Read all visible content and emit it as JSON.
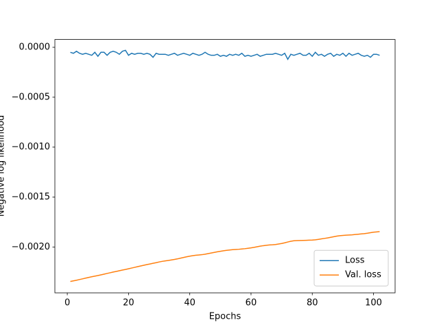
{
  "chart_data": {
    "type": "line",
    "xlabel": "Epochs",
    "ylabel": "Negative log likelihood",
    "x": [
      1,
      2,
      3,
      4,
      5,
      6,
      7,
      8,
      9,
      10,
      11,
      12,
      13,
      14,
      15,
      16,
      17,
      18,
      19,
      20,
      21,
      22,
      23,
      24,
      25,
      26,
      27,
      28,
      29,
      30,
      31,
      32,
      33,
      34,
      35,
      36,
      37,
      38,
      39,
      40,
      41,
      42,
      43,
      44,
      45,
      46,
      47,
      48,
      49,
      50,
      51,
      52,
      53,
      54,
      55,
      56,
      57,
      58,
      59,
      60,
      61,
      62,
      63,
      64,
      65,
      66,
      67,
      68,
      69,
      70,
      71,
      72,
      73,
      74,
      75,
      76,
      77,
      78,
      79,
      80,
      81,
      82,
      83,
      84,
      85,
      86,
      87,
      88,
      89,
      90,
      91,
      92,
      93,
      94,
      95,
      96,
      97,
      98,
      99,
      100,
      101,
      102
    ],
    "series": [
      {
        "name": "Loss",
        "color": "#1f77b4",
        "values": [
          -5e-05,
          -6e-05,
          -4e-05,
          -6e-05,
          -7e-05,
          -6e-05,
          -7e-05,
          -8e-05,
          -5e-05,
          -9e-05,
          -5e-05,
          -5e-05,
          -8e-05,
          -5e-05,
          -4e-05,
          -5e-05,
          -7e-05,
          -4e-05,
          -3e-05,
          -8e-05,
          -6e-05,
          -7e-05,
          -6e-05,
          -6e-05,
          -7e-05,
          -6e-05,
          -7e-05,
          -0.0001,
          -6e-05,
          -7e-05,
          -7e-05,
          -7e-05,
          -8e-05,
          -7e-05,
          -6e-05,
          -8e-05,
          -7e-05,
          -6e-05,
          -7e-05,
          -8e-05,
          -6e-05,
          -7e-05,
          -8e-05,
          -7e-05,
          -5e-05,
          -7e-05,
          -8e-05,
          -8e-05,
          -7e-05,
          -9e-05,
          -8e-05,
          -9e-05,
          -7e-05,
          -8e-05,
          -7e-05,
          -8e-05,
          -6e-05,
          -9e-05,
          -8e-05,
          -9e-05,
          -8e-05,
          -7e-05,
          -9e-05,
          -8e-05,
          -7e-05,
          -7e-05,
          -7e-05,
          -6e-05,
          -7e-05,
          -8e-05,
          -6e-05,
          -0.00012,
          -7e-05,
          -8e-05,
          -7e-05,
          -6e-05,
          -8e-05,
          -8e-05,
          -6e-05,
          -9e-05,
          -5e-05,
          -8e-05,
          -7e-05,
          -9e-05,
          -7e-05,
          -6e-05,
          -9e-05,
          -7e-05,
          -8e-05,
          -6e-05,
          -9e-05,
          -6e-05,
          -8e-05,
          -7e-05,
          -6e-05,
          -8e-05,
          -9e-05,
          -8e-05,
          -0.0001,
          -7e-05,
          -7e-05,
          -8e-05
        ]
      },
      {
        "name": "Val. loss",
        "color": "#ff7f0e",
        "values": [
          -0.002345,
          -0.002339,
          -0.002333,
          -0.002326,
          -0.002319,
          -0.002312,
          -0.002305,
          -0.002298,
          -0.002292,
          -0.002286,
          -0.002279,
          -0.002272,
          -0.002265,
          -0.002258,
          -0.002251,
          -0.002245,
          -0.002238,
          -0.002231,
          -0.002225,
          -0.002218,
          -0.002211,
          -0.002204,
          -0.002197,
          -0.00219,
          -0.002183,
          -0.002176,
          -0.00217,
          -0.002163,
          -0.002157,
          -0.00215,
          -0.002144,
          -0.002139,
          -0.002135,
          -0.00213,
          -0.002125,
          -0.002119,
          -0.002112,
          -0.002105,
          -0.002098,
          -0.002092,
          -0.002087,
          -0.002083,
          -0.00208,
          -0.002077,
          -0.002072,
          -0.002066,
          -0.00206,
          -0.002054,
          -0.002048,
          -0.002043,
          -0.002038,
          -0.002034,
          -0.00203,
          -0.002027,
          -0.002025,
          -0.002023,
          -0.00202,
          -0.002017,
          -0.002013,
          -0.002009,
          -0.002004,
          -0.001998,
          -0.001992,
          -0.001987,
          -0.001983,
          -0.00198,
          -0.001978,
          -0.001975,
          -0.00197,
          -0.001965,
          -0.001958,
          -0.00195,
          -0.001943,
          -0.001938,
          -0.001936,
          -0.001935,
          -0.001934,
          -0.001933,
          -0.001932,
          -0.001931,
          -0.001928,
          -0.001924,
          -0.001919,
          -0.001914,
          -0.001909,
          -0.001903,
          -0.001897,
          -0.001891,
          -0.001887,
          -0.001884,
          -0.001882,
          -0.00188,
          -0.001878,
          -0.001875,
          -0.001872,
          -0.001869,
          -0.001866,
          -0.001862,
          -0.001857,
          -0.001852,
          -0.001849,
          -0.001846
        ]
      }
    ],
    "xlim": [
      -4.05,
      107.05
    ],
    "ylim": [
      -0.002459,
      7.83e-05
    ],
    "xticks": [
      0,
      20,
      40,
      60,
      80,
      100
    ],
    "yticks": [
      {
        "value": 0,
        "label": "0.0000"
      },
      {
        "value": -0.0005,
        "label": "−0.0005"
      },
      {
        "value": -0.001,
        "label": "−0.0010"
      },
      {
        "value": -0.0015,
        "label": "−0.0015"
      },
      {
        "value": -0.002,
        "label": "−0.0020"
      }
    ],
    "legend": "lower right",
    "grid": false
  }
}
